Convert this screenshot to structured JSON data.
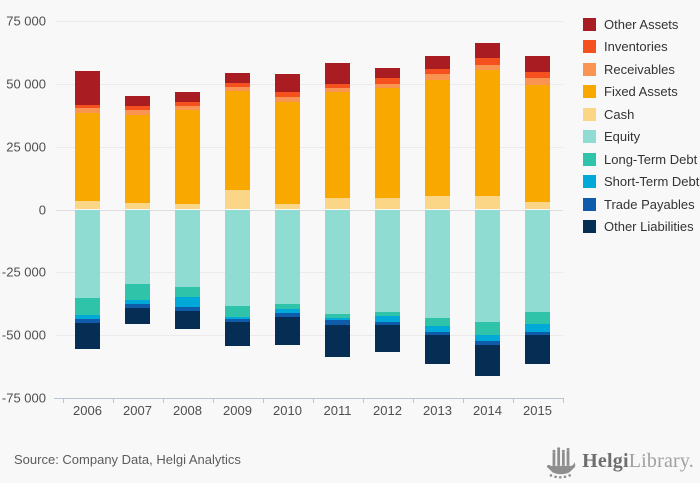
{
  "chart_data": {
    "type": "bar",
    "stacked": true,
    "categories": [
      "2006",
      "2007",
      "2008",
      "2009",
      "2010",
      "2011",
      "2012",
      "2013",
      "2014",
      "2015"
    ],
    "series": [
      {
        "name": "Other Assets",
        "color": "#a81c22",
        "values": [
          13700,
          3700,
          4200,
          4000,
          7300,
          8500,
          4000,
          5000,
          6300,
          6600
        ]
      },
      {
        "name": "Inventories",
        "color": "#f4511e",
        "values": [
          900,
          1700,
          1600,
          1300,
          1700,
          1700,
          2500,
          2000,
          2600,
          2400
        ]
      },
      {
        "name": "Receivables",
        "color": "#fa9452",
        "values": [
          2000,
          2000,
          1400,
          1900,
          2000,
          1600,
          1700,
          2400,
          2000,
          2600
        ]
      },
      {
        "name": "Fixed Assets",
        "color": "#f9a800",
        "values": [
          35300,
          35100,
          37500,
          39300,
          40700,
          42200,
          43600,
          46100,
          50100,
          46800
        ]
      },
      {
        "name": "Cash",
        "color": "#fbd687",
        "values": [
          3200,
          2500,
          2100,
          7700,
          2200,
          4400,
          4600,
          5400,
          5400,
          2800
        ]
      },
      {
        "name": "Equity",
        "color": "#8edcd2",
        "values": [
          -35300,
          -29600,
          -30700,
          -38300,
          -37500,
          -41500,
          -40600,
          -43000,
          -44800,
          -40600
        ]
      },
      {
        "name": "Long-Term Debt",
        "color": "#2fc3aa",
        "values": [
          -6600,
          -6600,
          -4200,
          -4500,
          -2100,
          -1600,
          -1600,
          -3200,
          -5300,
          -5000
        ]
      },
      {
        "name": "Short-Term Debt",
        "color": "#00a9d8",
        "values": [
          -1600,
          -1300,
          -4000,
          -800,
          -1600,
          -1000,
          -2400,
          -2600,
          -2400,
          -3200
        ]
      },
      {
        "name": "Trade Payables",
        "color": "#0f5cab",
        "values": [
          -1700,
          -1700,
          -1300,
          -1300,
          -1400,
          -1700,
          -1300,
          -1300,
          -1300,
          -1300
        ]
      },
      {
        "name": "Other Liabilities",
        "color": "#062e54",
        "values": [
          -10200,
          -6200,
          -7400,
          -9500,
          -11200,
          -12800,
          -10900,
          -11300,
          -12600,
          -11300
        ]
      }
    ],
    "title": "",
    "xlabel": "",
    "ylabel": "",
    "ylim": [
      -75000,
      75000
    ],
    "ytick_labels": [
      "75 000",
      "50 000",
      "25 000",
      "0",
      "-25 000",
      "-50 000",
      "-75 000"
    ],
    "grid": true,
    "legend_position": "right"
  },
  "footer": {
    "source": "Source: Company Data, Helgi Analytics",
    "logo_helgi": "Helgi",
    "logo_library": "Library."
  }
}
